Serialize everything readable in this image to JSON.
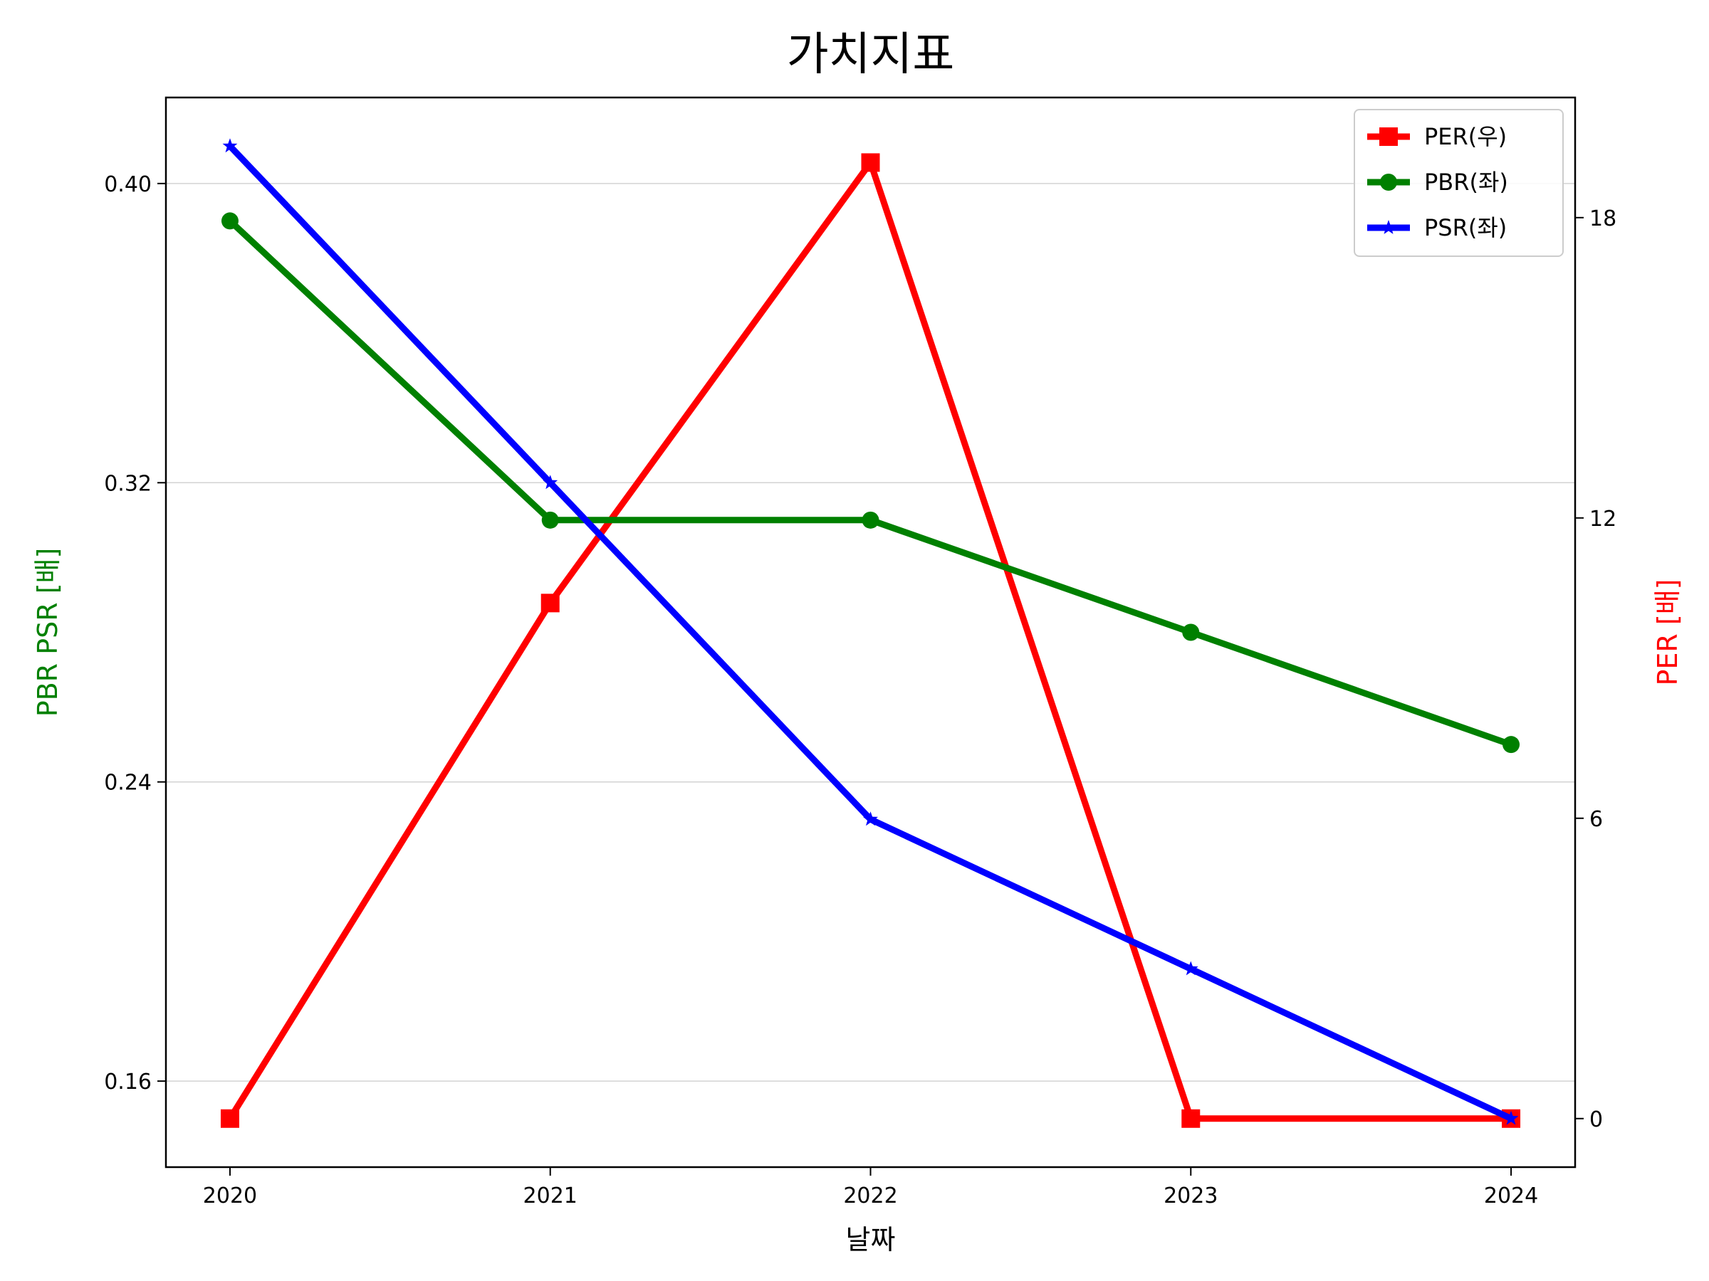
{
  "chart_data": {
    "type": "line",
    "title": "가치지표",
    "xlabel": "날짜",
    "ylabel_left": "PBR PSR [배]",
    "ylabel_right": "PER [배]",
    "categories": [
      "2020",
      "2021",
      "2022",
      "2023",
      "2024"
    ],
    "left_axis": {
      "ylim": [
        0.137,
        0.423
      ],
      "ticks": [
        0.16,
        0.24,
        0.32,
        0.4
      ],
      "tick_labels": [
        "0.16",
        "0.24",
        "0.32",
        "0.40"
      ],
      "color": "#008000"
    },
    "right_axis": {
      "ylim": [
        -0.97,
        20.4
      ],
      "ticks": [
        0,
        6,
        12,
        18
      ],
      "tick_labels": [
        "0",
        "6",
        "12",
        "18"
      ],
      "color": "#ff0000"
    },
    "grid": true,
    "legend_position": "top-right",
    "series": [
      {
        "name": "PER(우)",
        "axis": "right",
        "color": "#ff0000",
        "marker": "square",
        "values": [
          0,
          10.3,
          19.1,
          0,
          0
        ]
      },
      {
        "name": "PBR(좌)",
        "axis": "left",
        "color": "#008000",
        "marker": "circle",
        "values": [
          0.39,
          0.31,
          0.31,
          0.28,
          0.25
        ]
      },
      {
        "name": "PSR(좌)",
        "axis": "left",
        "color": "#0000ff",
        "marker": "star",
        "values": [
          0.41,
          0.32,
          0.23,
          0.19,
          0.15
        ]
      }
    ]
  }
}
